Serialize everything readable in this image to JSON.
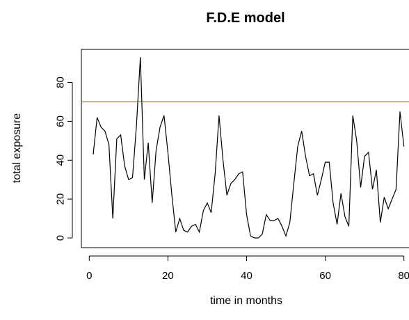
{
  "chart_data": {
    "type": "line",
    "title": "F.D.E model",
    "xlabel": "time in months",
    "ylabel": "total exposure",
    "xlim": [
      -2,
      82
    ],
    "ylim": [
      -5,
      97
    ],
    "xticks": [
      0,
      20,
      40,
      60,
      80
    ],
    "yticks": [
      0,
      20,
      40,
      60,
      80
    ],
    "grid": false,
    "legend": "none",
    "series_color": "#000000",
    "threshold": {
      "value": 70,
      "color": "#e3342f"
    },
    "series": [
      {
        "x": [
          1,
          2,
          3,
          4,
          5,
          6,
          7,
          8,
          9,
          10,
          11,
          12,
          13,
          14,
          15,
          16,
          17,
          18,
          19,
          20,
          21,
          22,
          23,
          24,
          25,
          26,
          27,
          28,
          29,
          30,
          31,
          32,
          33,
          34,
          35,
          36,
          37,
          38,
          39,
          40,
          41,
          42,
          43,
          44,
          45,
          46,
          47,
          48,
          49,
          50,
          51,
          52,
          53,
          54,
          55,
          56,
          57,
          58,
          59,
          60,
          61,
          62,
          63,
          64,
          65,
          66,
          67,
          68,
          69,
          70,
          71,
          72,
          73,
          74,
          75,
          76,
          77,
          78,
          79,
          80
        ],
        "y": [
          43,
          62,
          57,
          55,
          48,
          10,
          51,
          53,
          37,
          30,
          31,
          58,
          93,
          30,
          49,
          18,
          45,
          57,
          63,
          44,
          22,
          3,
          10,
          4,
          3,
          6,
          7,
          3,
          14,
          18,
          13,
          33,
          63,
          40,
          22,
          28,
          30,
          33,
          34,
          12,
          1,
          0,
          0,
          2,
          12,
          9,
          9,
          10,
          6,
          1,
          8,
          28,
          47,
          55,
          42,
          32,
          33,
          22,
          30,
          39,
          39,
          18,
          7,
          23,
          11,
          6,
          63,
          50,
          26,
          42,
          44,
          25,
          35,
          8,
          21,
          15,
          20,
          25,
          65,
          47
        ]
      }
    ]
  }
}
